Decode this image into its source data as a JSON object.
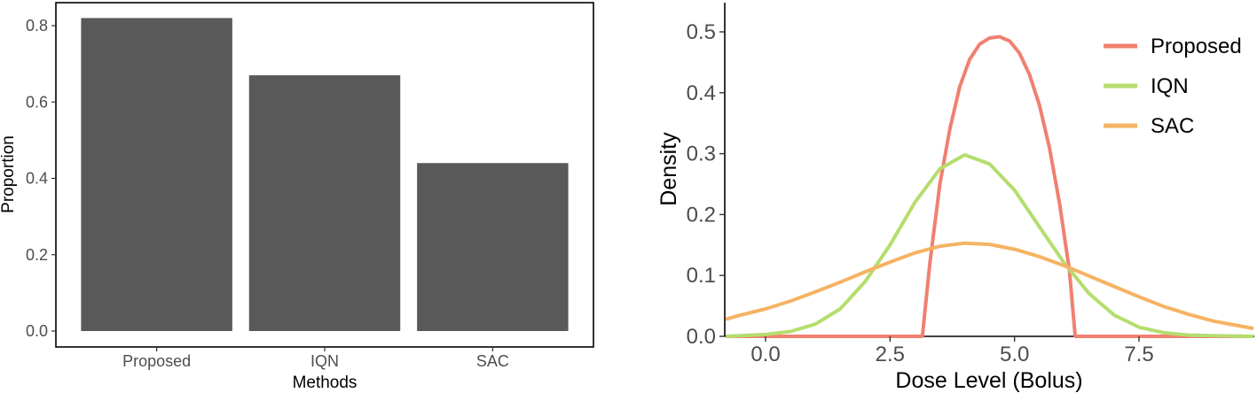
{
  "chart_data": [
    {
      "type": "bar",
      "categories": [
        "Proposed",
        "IQN",
        "SAC"
      ],
      "values": [
        0.82,
        0.67,
        0.44
      ],
      "xlabel": "Methods",
      "ylabel": "Proportion",
      "ylim": [
        0,
        0.85
      ],
      "yticks": [
        0.0,
        0.2,
        0.4,
        0.6,
        0.8
      ],
      "ytick_labels": [
        "0.0",
        "0.2",
        "0.4",
        "0.6",
        "0.8"
      ],
      "bar_color": "#595959",
      "grid": false,
      "frame": true
    },
    {
      "type": "line",
      "xlabel": "Dose Level (Bolus)",
      "ylabel": "Density",
      "xlim": [
        -0.8,
        9.8
      ],
      "ylim": [
        0,
        0.55
      ],
      "xticks": [
        0.0,
        2.5,
        5.0,
        7.5
      ],
      "xtick_labels": [
        "0.0",
        "2.5",
        "5.0",
        "7.5"
      ],
      "yticks": [
        0.0,
        0.1,
        0.2,
        0.3,
        0.4,
        0.5
      ],
      "ytick_labels": [
        "0.0",
        "0.1",
        "0.2",
        "0.3",
        "0.4",
        "0.5"
      ],
      "legend_position": "top-right",
      "grid": false,
      "series": [
        {
          "name": "Proposed",
          "color": "#F08070",
          "x": [
            -0.8,
            3.15,
            3.3,
            3.5,
            3.7,
            3.9,
            4.1,
            4.3,
            4.5,
            4.7,
            4.9,
            5.1,
            5.3,
            5.5,
            5.7,
            5.9,
            6.1,
            6.22,
            9.8
          ],
          "y": [
            0.0,
            0.0,
            0.12,
            0.25,
            0.34,
            0.41,
            0.455,
            0.48,
            0.49,
            0.492,
            0.485,
            0.465,
            0.43,
            0.38,
            0.31,
            0.22,
            0.11,
            0.0,
            0.0
          ]
        },
        {
          "name": "IQN",
          "color": "#B5DD6E",
          "x": [
            -0.8,
            -0.5,
            0.0,
            0.5,
            1.0,
            1.5,
            2.0,
            2.5,
            3.0,
            3.5,
            4.0,
            4.5,
            5.0,
            5.5,
            6.0,
            6.5,
            7.0,
            7.5,
            8.0,
            8.5,
            9.0,
            9.8
          ],
          "y": [
            0.0,
            0.001,
            0.003,
            0.008,
            0.02,
            0.045,
            0.09,
            0.15,
            0.22,
            0.275,
            0.298,
            0.283,
            0.24,
            0.18,
            0.12,
            0.07,
            0.035,
            0.015,
            0.006,
            0.002,
            0.001,
            0.0
          ]
        },
        {
          "name": "SAC",
          "color": "#F5B363",
          "x": [
            -0.8,
            -0.5,
            0.0,
            0.5,
            1.0,
            1.5,
            2.0,
            2.5,
            3.0,
            3.5,
            4.0,
            4.5,
            5.0,
            5.5,
            6.0,
            6.5,
            7.0,
            7.5,
            8.0,
            8.5,
            9.0,
            9.8
          ],
          "y": [
            0.028,
            0.035,
            0.045,
            0.058,
            0.073,
            0.089,
            0.106,
            0.122,
            0.137,
            0.148,
            0.153,
            0.151,
            0.143,
            0.131,
            0.116,
            0.099,
            0.082,
            0.065,
            0.049,
            0.036,
            0.025,
            0.013
          ]
        }
      ]
    }
  ]
}
